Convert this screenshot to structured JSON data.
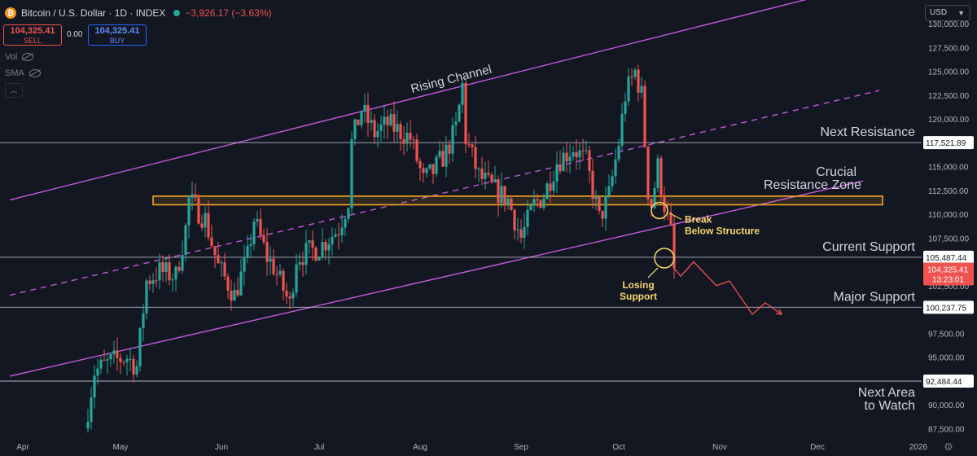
{
  "header": {
    "symbol": "Bitcoin / U.S. Dollar · 1D · INDEX",
    "change": "−3,926.17 (−3.63%)",
    "icon": "bitcoin-icon",
    "status_icon": "market-status-dot-icon"
  },
  "trade": {
    "sell_price": "104,325.41",
    "sell_label": "SELL",
    "spread": "0.00",
    "buy_price": "104,325.41",
    "buy_label": "BUY"
  },
  "indicators": [
    {
      "label": "Vol",
      "icon": "eye-hidden-icon"
    },
    {
      "label": "SMA",
      "icon": "eye-hidden-icon"
    }
  ],
  "currency": {
    "value": "USD",
    "icon": "chevron-down-icon"
  },
  "settings_icon": "gear-icon",
  "colors": {
    "background": "#131722",
    "up": "#26a69a",
    "down": "#ef5350",
    "channel": "#c45ad8",
    "zone": "#f5a623",
    "annotation": "#f5d76e",
    "level_line": "#d1d4dc",
    "text": "#d1d4dc",
    "axis_text": "#b2b5be"
  },
  "chart_data": {
    "type": "candlestick",
    "title": "",
    "ylim": [
      86500,
      132500
    ],
    "y_ticks": [
      "87,500.00",
      "90,000.00",
      "92,500.00",
      "95,000.00",
      "97,500.00",
      "100,000.00",
      "102,500.00",
      "105,000.00",
      "107,500.00",
      "110,000.00",
      "112,500.00",
      "115,000.00",
      "117,500.00",
      "120,000.00",
      "122,500.00",
      "125,000.00",
      "127,500.00",
      "130,000.00"
    ],
    "x_range": [
      "2025-03-25",
      "2026-01-02"
    ],
    "x_ticks": [
      {
        "label": "Apr",
        "date": "2025-04-01"
      },
      {
        "label": "May",
        "date": "2025-05-01"
      },
      {
        "label": "Jun",
        "date": "2025-06-01"
      },
      {
        "label": "Jul",
        "date": "2025-07-01"
      },
      {
        "label": "Aug",
        "date": "2025-08-01"
      },
      {
        "label": "Sep",
        "date": "2025-09-01"
      },
      {
        "label": "Oct",
        "date": "2025-10-01"
      },
      {
        "label": "Nov",
        "date": "2025-11-01"
      },
      {
        "label": "Dec",
        "date": "2025-12-01"
      },
      {
        "label": "2026",
        "date": "2026-01-01"
      }
    ],
    "price_path": [
      [
        "2025-04-20",
        87500
      ],
      [
        "2025-04-23",
        93500
      ],
      [
        "2025-04-28",
        94500
      ],
      [
        "2025-05-03",
        95000
      ],
      [
        "2025-05-06",
        94000
      ],
      [
        "2025-05-09",
        103000
      ],
      [
        "2025-05-13",
        104000
      ],
      [
        "2025-05-18",
        103500
      ],
      [
        "2025-05-21",
        108500
      ],
      [
        "2025-05-22",
        111500
      ],
      [
        "2025-05-27",
        109500
      ],
      [
        "2025-05-31",
        104500
      ],
      [
        "2025-06-05",
        101500
      ],
      [
        "2025-06-09",
        105500
      ],
      [
        "2025-06-11",
        109500
      ],
      [
        "2025-06-15",
        105500
      ],
      [
        "2025-06-17",
        104500
      ],
      [
        "2025-06-22",
        100500
      ],
      [
        "2025-06-24",
        105500
      ],
      [
        "2025-07-01",
        106500
      ],
      [
        "2025-07-07",
        108500
      ],
      [
        "2025-07-10",
        111500
      ],
      [
        "2025-07-11",
        117500
      ],
      [
        "2025-07-14",
        121000
      ],
      [
        "2025-07-18",
        118500
      ],
      [
        "2025-07-22",
        119500
      ],
      [
        "2025-07-29",
        118000
      ],
      [
        "2025-08-02",
        113500
      ],
      [
        "2025-08-05",
        114500
      ],
      [
        "2025-08-09",
        116500
      ],
      [
        "2025-08-12",
        119000
      ],
      [
        "2025-08-14",
        123500
      ],
      [
        "2025-08-15",
        118000
      ],
      [
        "2025-08-19",
        114000
      ],
      [
        "2025-08-24",
        112500
      ],
      [
        "2025-08-28",
        111500
      ],
      [
        "2025-09-01",
        107500
      ],
      [
        "2025-09-05",
        111000
      ],
      [
        "2025-09-08",
        112000
      ],
      [
        "2025-09-12",
        115500
      ],
      [
        "2025-09-17",
        117000
      ],
      [
        "2025-09-21",
        115500
      ],
      [
        "2025-09-25",
        109500
      ],
      [
        "2025-09-28",
        112000
      ],
      [
        "2025-10-01",
        117500
      ],
      [
        "2025-10-03",
        122500
      ],
      [
        "2025-10-06",
        125000
      ],
      [
        "2025-10-08",
        122500
      ],
      [
        "2025-10-10",
        112500
      ],
      [
        "2025-10-11",
        111000
      ],
      [
        "2025-10-13",
        115000
      ],
      [
        "2025-10-15",
        111000
      ],
      [
        "2025-10-17",
        108000
      ],
      [
        "2025-10-18",
        104325.41
      ]
    ],
    "levels": [
      {
        "label": "Next Resistance",
        "price": 117521.89,
        "tag": "117,521.89"
      },
      {
        "label": "Current Support",
        "price": 105487.44,
        "tag": "105,487.44"
      },
      {
        "label": "Major Support",
        "price": 100237.75,
        "tag": "100,237.75"
      },
      {
        "label": "Next Area to Watch",
        "price": 92484.44,
        "tag": "92,484.44"
      }
    ],
    "current_price": {
      "value": 104325.41,
      "tag": "104,325.41",
      "countdown": "13:23:01"
    },
    "resistance_zone": {
      "label_line1": "Crucial",
      "label_line2": "Resistance Zone",
      "from": 111000,
      "to": 111900,
      "start": "2025-05-11",
      "end": "2025-12-21"
    },
    "channel": {
      "label": "Rising Channel",
      "upper": [
        [
          "2025-03-28",
          111500
        ],
        [
          "2025-12-26",
          135000
        ]
      ],
      "middle": [
        [
          "2025-03-28",
          101500
        ],
        [
          "2025-12-20",
          123000
        ]
      ],
      "lower": [
        [
          "2025-03-28",
          93000
        ],
        [
          "2025-12-15",
          113500
        ]
      ]
    },
    "projection": [
      [
        "2025-10-18",
        104325.41
      ],
      [
        "2025-10-20",
        103500
      ],
      [
        "2025-10-24",
        105000
      ],
      [
        "2025-10-31",
        102500
      ],
      [
        "2025-11-04",
        103000
      ],
      [
        "2025-11-11",
        99500
      ],
      [
        "2025-11-15",
        100700
      ],
      [
        "2025-11-20",
        99500
      ]
    ],
    "annotations": [
      {
        "line1": "Break",
        "line2": "Below Structure",
        "at": [
          "2025-10-10",
          110400
        ]
      },
      {
        "line1": "Losing",
        "line2": "Support",
        "at": [
          "2025-10-13",
          105400
        ]
      }
    ]
  }
}
